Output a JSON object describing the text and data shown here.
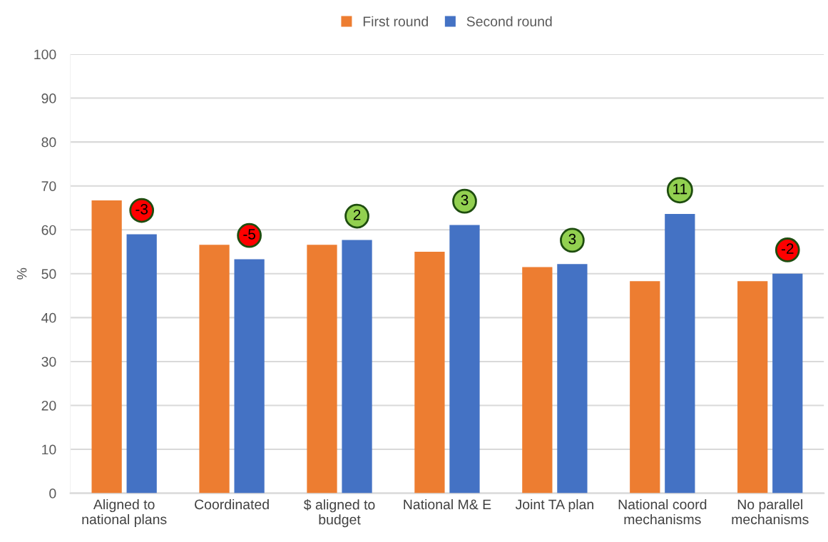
{
  "chart_data": {
    "type": "bar",
    "ylabel": "%",
    "categories": [
      "Aligned to\nnational plans",
      "Coordinated",
      "$ aligned to\nbudget",
      "National M& E",
      "Joint TA plan",
      "National coord\nmechanisms",
      "No parallel\nmechanisms"
    ],
    "series": [
      {
        "name": "First round",
        "color": "#ed7d31",
        "values": [
          66.7,
          56.6,
          56.6,
          55.0,
          51.5,
          48.3,
          48.3
        ]
      },
      {
        "name": "Second round",
        "color": "#4472c4",
        "values": [
          59.0,
          53.3,
          57.7,
          61.1,
          52.2,
          63.6,
          50.0
        ]
      }
    ],
    "ylim": [
      0,
      100
    ],
    "yticks": [
      0,
      10,
      20,
      30,
      40,
      50,
      60,
      70,
      80,
      90,
      100
    ],
    "grid": "y",
    "legend": "top",
    "annotations": [
      "-3",
      "-5",
      "2",
      "3",
      "3",
      "11",
      "-2"
    ]
  }
}
